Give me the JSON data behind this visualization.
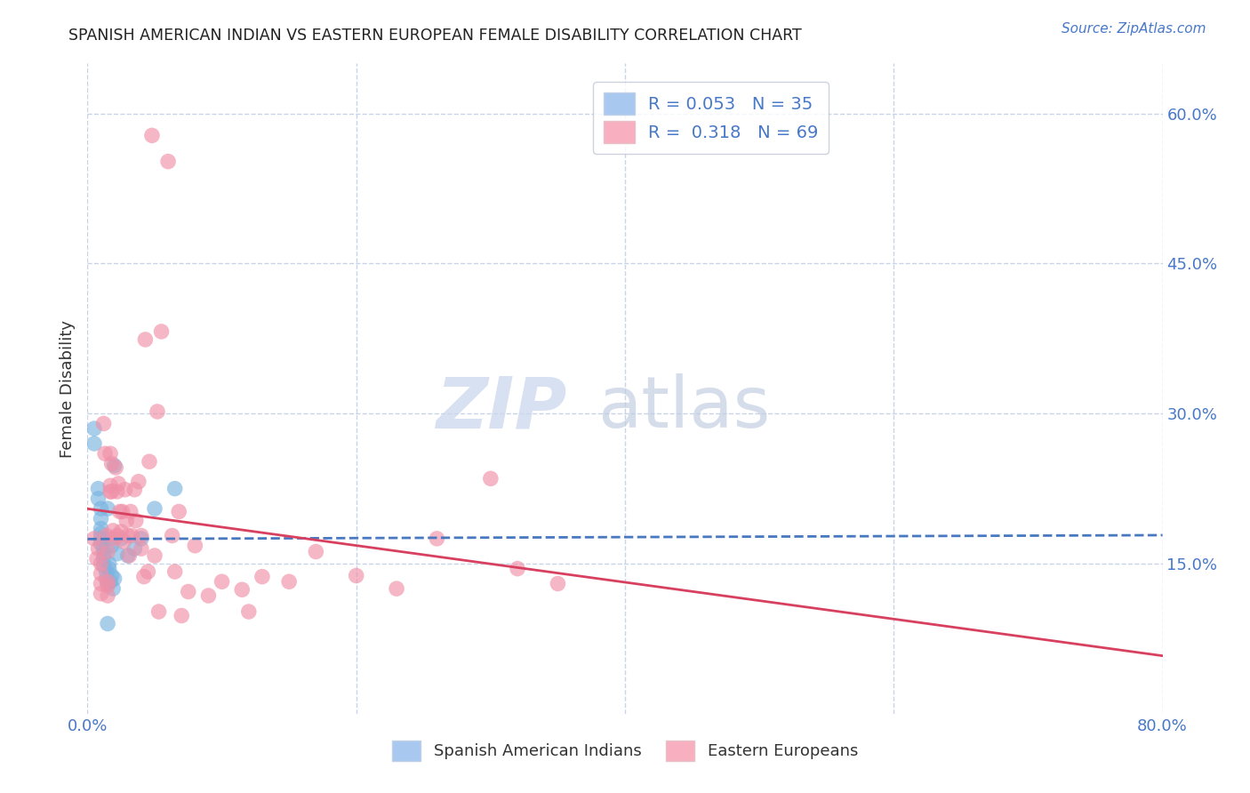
{
  "title": "SPANISH AMERICAN INDIAN VS EASTERN EUROPEAN FEMALE DISABILITY CORRELATION CHART",
  "source": "Source: ZipAtlas.com",
  "ylabel": "Female Disability",
  "x_min": 0.0,
  "x_max": 0.8,
  "y_min": 0.0,
  "y_max": 0.65,
  "x_ticks_pos": [
    0.0,
    0.2,
    0.4,
    0.6,
    0.8
  ],
  "x_tick_labels": [
    "0.0%",
    "",
    "",
    "",
    "80.0%"
  ],
  "y_ticks_right": [
    0.15,
    0.3,
    0.45,
    0.6
  ],
  "y_tick_labels_right": [
    "15.0%",
    "30.0%",
    "45.0%",
    "60.0%"
  ],
  "series1_label": "Spanish American Indians",
  "series2_label": "Eastern Europeans",
  "series1_color": "#7ab4e0",
  "series2_color": "#f090a8",
  "series1_line_color": "#4878c0",
  "series2_line_color": "#d84060",
  "background_color": "#ffffff",
  "grid_color": "#c8d4e8",
  "series1_x": [
    0.005,
    0.005,
    0.008,
    0.008,
    0.01,
    0.01,
    0.01,
    0.01,
    0.01,
    0.01,
    0.012,
    0.012,
    0.012,
    0.012,
    0.014,
    0.014,
    0.015,
    0.015,
    0.015,
    0.016,
    0.016,
    0.017,
    0.018,
    0.018,
    0.018,
    0.019,
    0.02,
    0.02,
    0.022,
    0.025,
    0.03,
    0.035,
    0.04,
    0.05,
    0.065
  ],
  "series1_y": [
    0.285,
    0.27,
    0.225,
    0.215,
    0.205,
    0.195,
    0.185,
    0.18,
    0.175,
    0.17,
    0.165,
    0.16,
    0.155,
    0.148,
    0.142,
    0.135,
    0.13,
    0.09,
    0.205,
    0.145,
    0.15,
    0.132,
    0.168,
    0.138,
    0.175,
    0.125,
    0.135,
    0.248,
    0.16,
    0.175,
    0.158,
    0.165,
    0.175,
    0.205,
    0.225
  ],
  "series2_x": [
    0.005,
    0.007,
    0.008,
    0.01,
    0.01,
    0.01,
    0.01,
    0.012,
    0.013,
    0.014,
    0.015,
    0.015,
    0.015,
    0.015,
    0.017,
    0.017,
    0.017,
    0.018,
    0.018,
    0.019,
    0.02,
    0.021,
    0.022,
    0.022,
    0.023,
    0.024,
    0.025,
    0.026,
    0.027,
    0.028,
    0.029,
    0.03,
    0.031,
    0.032,
    0.033,
    0.035,
    0.036,
    0.038,
    0.04,
    0.04,
    0.042,
    0.043,
    0.045,
    0.046,
    0.048,
    0.05,
    0.052,
    0.053,
    0.055,
    0.06,
    0.063,
    0.065,
    0.068,
    0.07,
    0.075,
    0.08,
    0.09,
    0.1,
    0.115,
    0.12,
    0.13,
    0.15,
    0.17,
    0.2,
    0.23,
    0.26,
    0.3,
    0.32,
    0.35
  ],
  "series2_y": [
    0.175,
    0.155,
    0.165,
    0.15,
    0.14,
    0.13,
    0.12,
    0.29,
    0.26,
    0.178,
    0.162,
    0.132,
    0.128,
    0.118,
    0.26,
    0.228,
    0.222,
    0.25,
    0.222,
    0.183,
    0.175,
    0.246,
    0.222,
    0.178,
    0.23,
    0.202,
    0.182,
    0.202,
    0.172,
    0.224,
    0.193,
    0.178,
    0.158,
    0.202,
    0.178,
    0.224,
    0.193,
    0.232,
    0.165,
    0.178,
    0.137,
    0.374,
    0.142,
    0.252,
    0.578,
    0.158,
    0.302,
    0.102,
    0.382,
    0.552,
    0.178,
    0.142,
    0.202,
    0.098,
    0.122,
    0.168,
    0.118,
    0.132,
    0.124,
    0.102,
    0.137,
    0.132,
    0.162,
    0.138,
    0.125,
    0.175,
    0.235,
    0.145,
    0.13
  ]
}
